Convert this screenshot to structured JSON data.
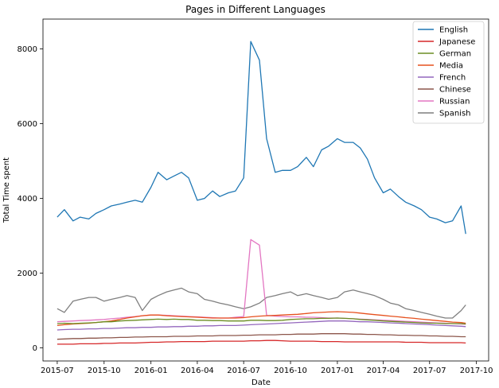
{
  "chart_data": {
    "type": "line",
    "title": "Pages in Different Languages",
    "xlabel": "Date",
    "ylabel": "Total Time spent",
    "grid": false,
    "legend_position": "top-right",
    "xlim": [
      "2015-06-03",
      "2017-10-25"
    ],
    "ylim": [
      -350,
      8800
    ],
    "x_ticks": [
      "2015-07",
      "2015-10",
      "2016-01",
      "2016-04",
      "2016-07",
      "2016-10",
      "2017-01",
      "2017-04",
      "2017-07",
      "2017-10"
    ],
    "y_ticks": [
      0,
      2000,
      4000,
      6000,
      8000
    ],
    "x": [
      "2015-07-01",
      "2015-07-15",
      "2015-08-01",
      "2015-08-15",
      "2015-09-01",
      "2015-09-15",
      "2015-10-01",
      "2015-10-15",
      "2015-11-01",
      "2015-11-15",
      "2015-12-01",
      "2015-12-15",
      "2016-01-01",
      "2016-01-15",
      "2016-02-01",
      "2016-02-15",
      "2016-03-01",
      "2016-03-15",
      "2016-04-01",
      "2016-04-15",
      "2016-05-01",
      "2016-05-15",
      "2016-06-01",
      "2016-06-15",
      "2016-07-01",
      "2016-07-15",
      "2016-08-01",
      "2016-08-15",
      "2016-09-01",
      "2016-09-15",
      "2016-10-01",
      "2016-10-15",
      "2016-11-01",
      "2016-11-15",
      "2016-12-01",
      "2016-12-15",
      "2017-01-01",
      "2017-01-15",
      "2017-02-01",
      "2017-02-15",
      "2017-03-01",
      "2017-03-15",
      "2017-04-01",
      "2017-04-15",
      "2017-05-01",
      "2017-05-15",
      "2017-06-01",
      "2017-06-15",
      "2017-07-01",
      "2017-07-15",
      "2017-08-01",
      "2017-08-15",
      "2017-09-01",
      "2017-09-10"
    ],
    "series": [
      {
        "name": "English",
        "color": "#1f77b4",
        "values": [
          3500,
          3700,
          3400,
          3500,
          3450,
          3600,
          3700,
          3800,
          3850,
          3900,
          3950,
          3900,
          4300,
          4700,
          4500,
          4600,
          4700,
          4550,
          3950,
          4000,
          4200,
          4050,
          4150,
          4200,
          4550,
          8200,
          7700,
          5600,
          4700,
          4750,
          4750,
          4850,
          5100,
          4850,
          5300,
          5400,
          5600,
          5500,
          5500,
          5350,
          5050,
          4550,
          4150,
          4250,
          4050,
          3900,
          3800,
          3700,
          3500,
          3450,
          3350,
          3400,
          3800,
          3050
        ]
      },
      {
        "name": "Japanese",
        "color": "#d62728",
        "values": [
          100,
          100,
          100,
          110,
          110,
          110,
          120,
          120,
          130,
          130,
          130,
          140,
          150,
          150,
          160,
          160,
          170,
          170,
          170,
          170,
          180,
          180,
          180,
          180,
          180,
          190,
          190,
          200,
          200,
          190,
          180,
          180,
          180,
          180,
          170,
          170,
          170,
          160,
          160,
          160,
          160,
          160,
          160,
          160,
          160,
          150,
          150,
          150,
          140,
          140,
          140,
          140,
          140,
          130
        ]
      },
      {
        "name": "German",
        "color": "#6b8e23",
        "values": [
          650,
          660,
          650,
          660,
          670,
          680,
          700,
          700,
          720,
          730,
          740,
          750,
          760,
          770,
          760,
          770,
          760,
          760,
          740,
          740,
          730,
          730,
          720,
          720,
          720,
          740,
          740,
          730,
          730,
          740,
          760,
          770,
          780,
          780,
          790,
          790,
          800,
          790,
          780,
          760,
          750,
          740,
          720,
          710,
          700,
          690,
          680,
          670,
          660,
          660,
          650,
          650,
          650,
          640
        ]
      },
      {
        "name": "Media",
        "color": "#e6501e",
        "values": [
          600,
          620,
          640,
          650,
          660,
          680,
          700,
          720,
          760,
          800,
          830,
          860,
          880,
          880,
          860,
          850,
          840,
          830,
          820,
          810,
          800,
          800,
          800,
          800,
          810,
          830,
          850,
          860,
          870,
          880,
          890,
          900,
          920,
          940,
          950,
          960,
          970,
          960,
          950,
          930,
          910,
          890,
          870,
          850,
          830,
          810,
          790,
          770,
          750,
          730,
          710,
          690,
          680,
          660
        ]
      },
      {
        "name": "French",
        "color": "#9467bd",
        "values": [
          480,
          490,
          500,
          500,
          510,
          510,
          520,
          520,
          530,
          540,
          540,
          550,
          550,
          560,
          560,
          570,
          570,
          580,
          580,
          590,
          590,
          600,
          600,
          600,
          610,
          620,
          630,
          640,
          650,
          660,
          670,
          680,
          690,
          700,
          710,
          720,
          720,
          720,
          710,
          700,
          700,
          690,
          680,
          670,
          660,
          650,
          640,
          630,
          620,
          610,
          600,
          590,
          580,
          570
        ]
      },
      {
        "name": "Chinese",
        "color": "#8c564b",
        "values": [
          230,
          240,
          250,
          250,
          260,
          260,
          270,
          270,
          280,
          280,
          290,
          290,
          300,
          300,
          300,
          310,
          310,
          310,
          320,
          320,
          320,
          330,
          330,
          330,
          340,
          340,
          350,
          350,
          350,
          360,
          360,
          370,
          370,
          370,
          380,
          380,
          380,
          380,
          370,
          370,
          360,
          360,
          350,
          350,
          340,
          340,
          330,
          330,
          320,
          320,
          310,
          310,
          300,
          300
        ]
      },
      {
        "name": "Russian",
        "color": "#e377c2",
        "values": [
          700,
          710,
          720,
          730,
          740,
          750,
          760,
          780,
          800,
          820,
          840,
          860,
          880,
          880,
          870,
          860,
          850,
          840,
          830,
          820,
          810,
          800,
          800,
          820,
          840,
          2900,
          2750,
          870,
          850,
          840,
          830,
          830,
          820,
          820,
          810,
          800,
          800,
          790,
          780,
          770,
          760,
          750,
          740,
          730,
          720,
          710,
          700,
          690,
          680,
          670,
          660,
          650,
          640,
          630
        ]
      },
      {
        "name": "Spanish",
        "color": "#7f7f7f",
        "values": [
          1050,
          950,
          1250,
          1300,
          1350,
          1350,
          1250,
          1300,
          1350,
          1400,
          1350,
          1000,
          1300,
          1400,
          1500,
          1550,
          1600,
          1500,
          1450,
          1300,
          1250,
          1200,
          1150,
          1100,
          1050,
          1100,
          1200,
          1350,
          1400,
          1450,
          1500,
          1400,
          1450,
          1400,
          1350,
          1300,
          1350,
          1500,
          1550,
          1500,
          1450,
          1400,
          1300,
          1200,
          1150,
          1050,
          1000,
          950,
          900,
          850,
          800,
          800,
          1000,
          1150
        ]
      }
    ],
    "legend": [
      "English",
      "Japanese",
      "German",
      "Media",
      "French",
      "Chinese",
      "Russian",
      "Spanish"
    ]
  }
}
